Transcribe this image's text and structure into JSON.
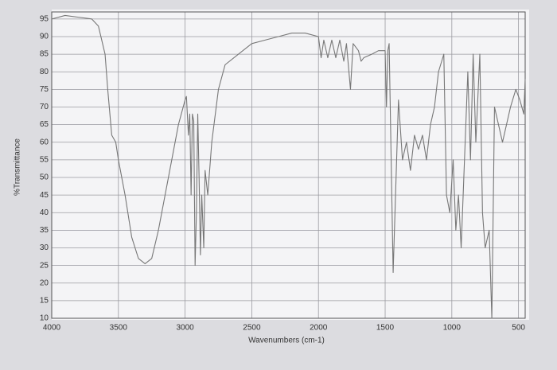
{
  "chart_data": {
    "type": "line",
    "xlabel": "Wavenumbers (cm-1)",
    "ylabel": "%Transmittance",
    "color": "#777777",
    "grid": true,
    "xlim": [
      4000,
      450
    ],
    "ylim": [
      10,
      97
    ],
    "xticks": [
      4000,
      3500,
      3000,
      2500,
      2000,
      1500,
      1000,
      500
    ],
    "yticks": [
      10,
      15,
      20,
      25,
      30,
      35,
      40,
      45,
      50,
      55,
      60,
      65,
      70,
      75,
      80,
      85,
      90,
      95
    ],
    "x": [
      4000,
      3900,
      3800,
      3700,
      3650,
      3600,
      3580,
      3550,
      3520,
      3500,
      3450,
      3400,
      3350,
      3300,
      3250,
      3200,
      3150,
      3100,
      3050,
      3000,
      2990,
      2975,
      2965,
      2955,
      2945,
      2935,
      2925,
      2915,
      2905,
      2895,
      2885,
      2875,
      2860,
      2850,
      2830,
      2800,
      2750,
      2700,
      2600,
      2500,
      2400,
      2300,
      2200,
      2100,
      2000,
      1980,
      1960,
      1930,
      1900,
      1870,
      1840,
      1810,
      1790,
      1760,
      1740,
      1700,
      1680,
      1660,
      1600,
      1550,
      1500,
      1490,
      1480,
      1470,
      1440,
      1400,
      1370,
      1340,
      1310,
      1280,
      1250,
      1220,
      1190,
      1160,
      1130,
      1100,
      1060,
      1040,
      1015,
      990,
      970,
      950,
      930,
      900,
      880,
      860,
      840,
      820,
      790,
      770,
      750,
      720,
      700,
      680,
      650,
      620,
      590,
      560,
      520,
      490,
      460,
      450
    ],
    "values": [
      95,
      96,
      95.5,
      95,
      93,
      85,
      75,
      62,
      60,
      55,
      45,
      33,
      27,
      25.5,
      27,
      35,
      45,
      55,
      65,
      72,
      73,
      62,
      68,
      45,
      68,
      66,
      25,
      40,
      68,
      50,
      28,
      45,
      30,
      52,
      45,
      60,
      75,
      82,
      85,
      88,
      89,
      90,
      91,
      91,
      90,
      84,
      89,
      84,
      89,
      84,
      89,
      83,
      88,
      75,
      88,
      86,
      83,
      84,
      85,
      86,
      86,
      70,
      86,
      88,
      23,
      72,
      55,
      60,
      52,
      62,
      58,
      62,
      55,
      65,
      70,
      80,
      85,
      45,
      40,
      55,
      35,
      45,
      30,
      60,
      80,
      55,
      85,
      60,
      85,
      40,
      30,
      35,
      10,
      70,
      65,
      60,
      65,
      70,
      75,
      72,
      68,
      78
    ]
  }
}
